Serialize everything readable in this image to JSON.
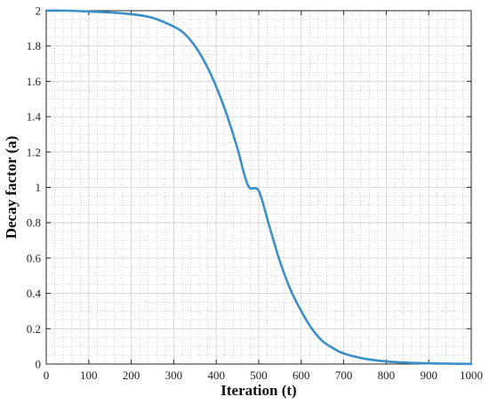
{
  "chart_data": {
    "type": "line",
    "title": "",
    "xlabel": "Iteration (t)",
    "ylabel": "Decay  factor (a)",
    "xlim": [
      0,
      1000
    ],
    "ylim": [
      0,
      2
    ],
    "x_ticks": [
      "0",
      "100",
      "200",
      "300",
      "400",
      "500",
      "600",
      "700",
      "800",
      "900",
      "1000"
    ],
    "y_ticks": [
      "0",
      "0.2",
      "0.4",
      "0.6",
      "0.8",
      "1",
      "1.2",
      "1.4",
      "1.6",
      "1.8",
      "2"
    ],
    "grid": true,
    "minor_grid": true,
    "series": [
      {
        "color": "#3a8fc8",
        "x": [
          0,
          50,
          100,
          150,
          200,
          250,
          300,
          325,
          350,
          375,
          400,
          425,
          450,
          475,
          500,
          525,
          550,
          575,
          600,
          625,
          650,
          675,
          700,
          750,
          800,
          850,
          900,
          950,
          1000
        ],
        "y": [
          2.0,
          2.0,
          1.995,
          1.99,
          1.98,
          1.96,
          1.91,
          1.87,
          1.8,
          1.7,
          1.57,
          1.41,
          1.22,
          1.01,
          0.98,
          0.78,
          0.58,
          0.42,
          0.3,
          0.2,
          0.13,
          0.09,
          0.06,
          0.03,
          0.015,
          0.008,
          0.004,
          0.002,
          0.001
        ]
      }
    ]
  }
}
